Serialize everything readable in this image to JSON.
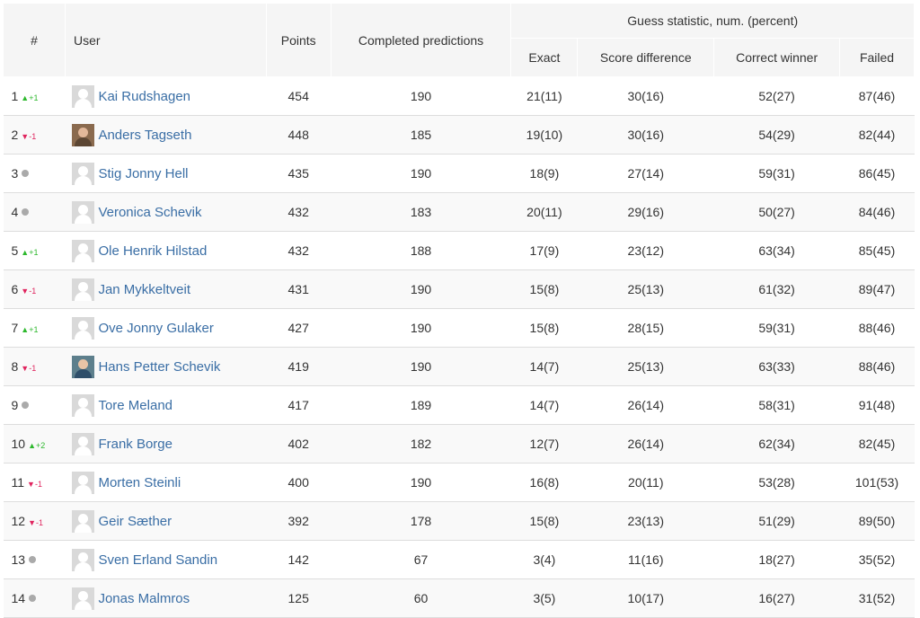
{
  "header": {
    "rank": "#",
    "user": "User",
    "points": "Points",
    "completed": "Completed predictions",
    "group": "Guess statistic, num. (percent)",
    "exact": "Exact",
    "score_diff": "Score difference",
    "correct_winner": "Correct winner",
    "failed": "Failed"
  },
  "rows": [
    {
      "rank": "1",
      "trend": "up",
      "change": "+1",
      "avatar": "placeholder",
      "name": "Kai Rudshagen",
      "points": "454",
      "completed": "190",
      "exact": "21(11)",
      "score_diff": "30(16)",
      "correct_winner": "52(27)",
      "failed": "87(46)"
    },
    {
      "rank": "2",
      "trend": "down",
      "change": "-1",
      "avatar": "photo1",
      "name": "Anders Tagseth",
      "points": "448",
      "completed": "185",
      "exact": "19(10)",
      "score_diff": "30(16)",
      "correct_winner": "54(29)",
      "failed": "82(44)"
    },
    {
      "rank": "3",
      "trend": "same",
      "change": "",
      "avatar": "placeholder",
      "name": "Stig Jonny Hell",
      "points": "435",
      "completed": "190",
      "exact": "18(9)",
      "score_diff": "27(14)",
      "correct_winner": "59(31)",
      "failed": "86(45)"
    },
    {
      "rank": "4",
      "trend": "same",
      "change": "",
      "avatar": "placeholder",
      "name": "Veronica Schevik",
      "points": "432",
      "completed": "183",
      "exact": "20(11)",
      "score_diff": "29(16)",
      "correct_winner": "50(27)",
      "failed": "84(46)"
    },
    {
      "rank": "5",
      "trend": "up",
      "change": "+1",
      "avatar": "placeholder",
      "name": "Ole Henrik Hilstad",
      "points": "432",
      "completed": "188",
      "exact": "17(9)",
      "score_diff": "23(12)",
      "correct_winner": "63(34)",
      "failed": "85(45)"
    },
    {
      "rank": "6",
      "trend": "down",
      "change": "-1",
      "avatar": "placeholder",
      "name": "Jan Mykkeltveit",
      "points": "431",
      "completed": "190",
      "exact": "15(8)",
      "score_diff": "25(13)",
      "correct_winner": "61(32)",
      "failed": "89(47)"
    },
    {
      "rank": "7",
      "trend": "up",
      "change": "+1",
      "avatar": "placeholder",
      "name": "Ove Jonny Gulaker",
      "points": "427",
      "completed": "190",
      "exact": "15(8)",
      "score_diff": "28(15)",
      "correct_winner": "59(31)",
      "failed": "88(46)"
    },
    {
      "rank": "8",
      "trend": "down",
      "change": "-1",
      "avatar": "photo2",
      "name": "Hans Petter Schevik",
      "points": "419",
      "completed": "190",
      "exact": "14(7)",
      "score_diff": "25(13)",
      "correct_winner": "63(33)",
      "failed": "88(46)"
    },
    {
      "rank": "9",
      "trend": "same",
      "change": "",
      "avatar": "placeholder",
      "name": "Tore Meland",
      "points": "417",
      "completed": "189",
      "exact": "14(7)",
      "score_diff": "26(14)",
      "correct_winner": "58(31)",
      "failed": "91(48)"
    },
    {
      "rank": "10",
      "trend": "up",
      "change": "+2",
      "avatar": "placeholder",
      "name": "Frank Borge",
      "points": "402",
      "completed": "182",
      "exact": "12(7)",
      "score_diff": "26(14)",
      "correct_winner": "62(34)",
      "failed": "82(45)"
    },
    {
      "rank": "11",
      "trend": "down",
      "change": "-1",
      "avatar": "placeholder",
      "name": "Morten Steinli",
      "points": "400",
      "completed": "190",
      "exact": "16(8)",
      "score_diff": "20(11)",
      "correct_winner": "53(28)",
      "failed": "101(53)"
    },
    {
      "rank": "12",
      "trend": "down",
      "change": "-1",
      "avatar": "placeholder",
      "name": "Geir Sæther",
      "points": "392",
      "completed": "178",
      "exact": "15(8)",
      "score_diff": "23(13)",
      "correct_winner": "51(29)",
      "failed": "89(50)"
    },
    {
      "rank": "13",
      "trend": "same",
      "change": "",
      "avatar": "placeholder",
      "name": "Sven Erland Sandin",
      "points": "142",
      "completed": "67",
      "exact": "3(4)",
      "score_diff": "11(16)",
      "correct_winner": "18(27)",
      "failed": "35(52)"
    },
    {
      "rank": "14",
      "trend": "same",
      "change": "",
      "avatar": "placeholder",
      "name": "Jonas Malmros",
      "points": "125",
      "completed": "60",
      "exact": "3(5)",
      "score_diff": "10(17)",
      "correct_winner": "16(27)",
      "failed": "31(52)"
    }
  ],
  "colors": {
    "link": "#3a6ea5",
    "up": "#2db82d",
    "down": "#e0245e",
    "neutral": "#aaaaaa",
    "header_bg": "#f5f5f5"
  },
  "icons": {
    "up": "triangle-up-icon",
    "down": "triangle-down-icon",
    "same": "dot-icon",
    "avatar": "user-avatar-icon"
  }
}
